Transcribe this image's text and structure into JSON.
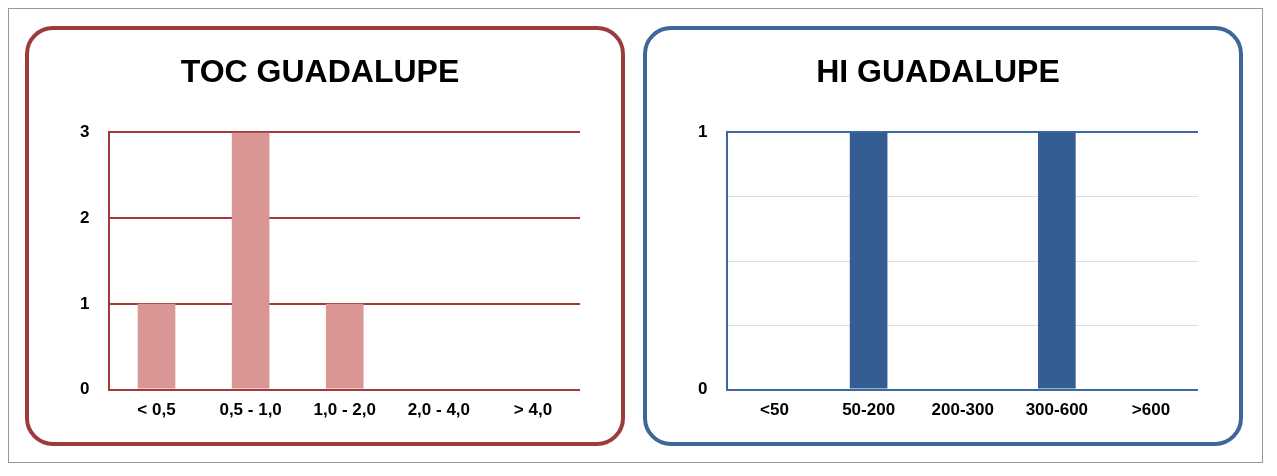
{
  "chart_data": [
    {
      "type": "bar",
      "title": "TOC GUADALUPE",
      "categories": [
        "< 0,5",
        "0,5 - 1,0",
        "1,0 - 2,0",
        "2,0 - 4,0",
        "> 4,0"
      ],
      "values": [
        1,
        3,
        1,
        0,
        0
      ],
      "color": "#d99694",
      "ylim": [
        0,
        3
      ],
      "yticks": [
        0,
        1,
        2,
        3
      ],
      "grid": "y",
      "legend": false
    },
    {
      "type": "bar",
      "title": "HI GUADALUPE",
      "categories": [
        "<50",
        "50-200",
        "200-300",
        "300-600",
        ">600"
      ],
      "values": [
        0,
        1,
        0,
        1,
        0
      ],
      "color": "#345e91",
      "ylim": [
        0,
        1
      ],
      "yticks": [
        0,
        {
          "value": 0.25,
          "label": null
        },
        {
          "value": 0.5,
          "label": null
        },
        {
          "value": 0.75,
          "label": null
        },
        1
      ],
      "grid": "y",
      "legend": false
    }
  ]
}
